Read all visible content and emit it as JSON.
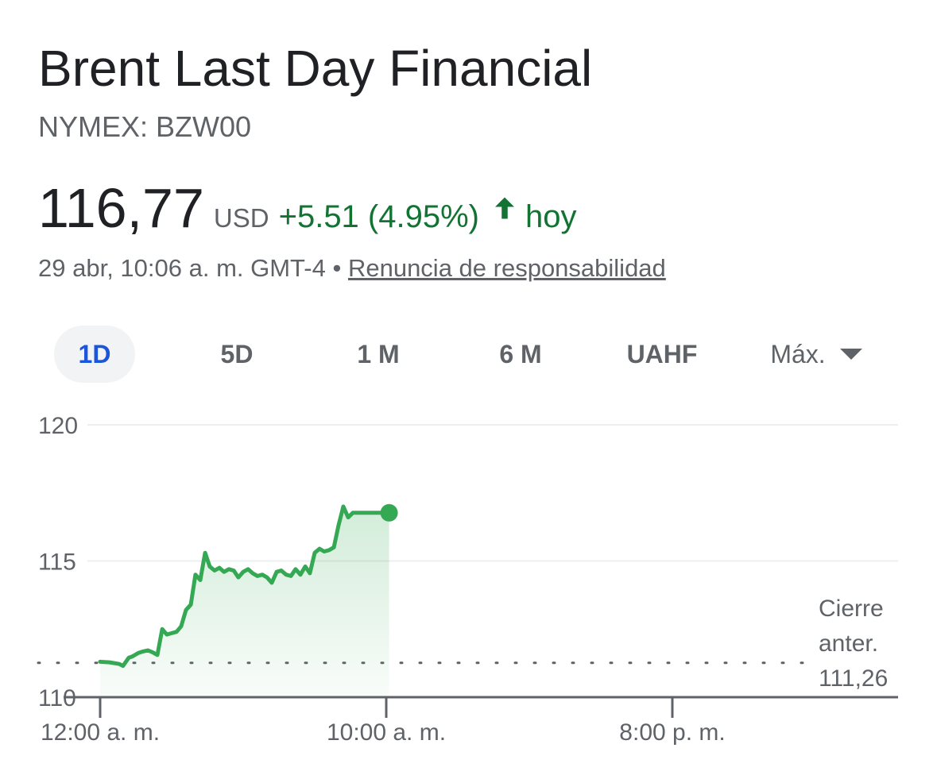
{
  "header": {
    "title": "Brent Last Day Financial",
    "ticker": "NYMEX: BZW00"
  },
  "quote": {
    "price": "116,77",
    "currency": "USD",
    "change": "+5.51 (4.95%)",
    "period": "hoy",
    "timestamp": "29 abr, 10:06 a. m. GMT-4",
    "separator": "•",
    "disclaimer": "Renuncia de responsabilidad",
    "up_color": "#137333",
    "line_color": "#34a853"
  },
  "tabs": [
    {
      "label": "1D",
      "active": true
    },
    {
      "label": "5D",
      "active": false
    },
    {
      "label": "1 M",
      "active": false
    },
    {
      "label": "6 M",
      "active": false
    },
    {
      "label": "UAHF",
      "active": false
    },
    {
      "label": "Máx.",
      "active": false
    }
  ],
  "chart_data": {
    "type": "area",
    "ylim": [
      110,
      120
    ],
    "y_ticks": [
      "120",
      "115",
      "110"
    ],
    "x_ticks": [
      "12:00 a. m.",
      "10:00 a. m.",
      "8:00 p. m."
    ],
    "xlim_hours": [
      0,
      24
    ],
    "previous_close": {
      "label_line1": "Cierre",
      "label_line2": "anter.",
      "value": 111.26,
      "value_label": "111,26"
    },
    "grid": true,
    "series": [
      {
        "x": [
          0,
          0.33,
          0.67,
          0.8,
          1.0,
          1.13,
          1.33,
          1.5,
          1.67,
          1.83,
          2.0,
          2.17,
          2.33,
          2.5,
          2.67,
          2.83,
          3.0,
          3.17,
          3.33,
          3.5,
          3.67,
          3.83,
          4.0,
          4.17,
          4.33,
          4.5,
          4.67,
          4.83,
          5.0,
          5.17,
          5.33,
          5.5,
          5.67,
          5.83,
          6.0,
          6.17,
          6.33,
          6.5,
          6.67,
          6.83,
          7.0,
          7.17,
          7.33,
          7.5,
          7.67,
          7.83,
          8.0,
          8.17,
          8.33,
          8.5,
          8.67,
          8.83,
          9.0,
          9.17,
          9.33,
          9.5,
          9.67,
          9.83,
          10.0,
          10.1
        ],
        "y": [
          111.3,
          111.28,
          111.22,
          111.15,
          111.45,
          111.5,
          111.62,
          111.68,
          111.72,
          111.65,
          111.55,
          112.5,
          112.3,
          112.35,
          112.4,
          112.6,
          113.2,
          113.4,
          114.5,
          114.3,
          115.3,
          114.8,
          114.65,
          114.75,
          114.6,
          114.7,
          114.65,
          114.4,
          114.6,
          114.7,
          114.55,
          114.45,
          114.5,
          114.4,
          114.2,
          114.6,
          114.65,
          114.5,
          114.45,
          114.7,
          114.5,
          114.8,
          114.55,
          115.3,
          115.45,
          115.35,
          115.4,
          115.5,
          116.3,
          117.0,
          116.6,
          116.77,
          116.77,
          116.77,
          116.77,
          116.77,
          116.77,
          116.77,
          116.77,
          116.77
        ],
        "last": {
          "x": 10.1,
          "y": 116.77
        }
      }
    ]
  }
}
